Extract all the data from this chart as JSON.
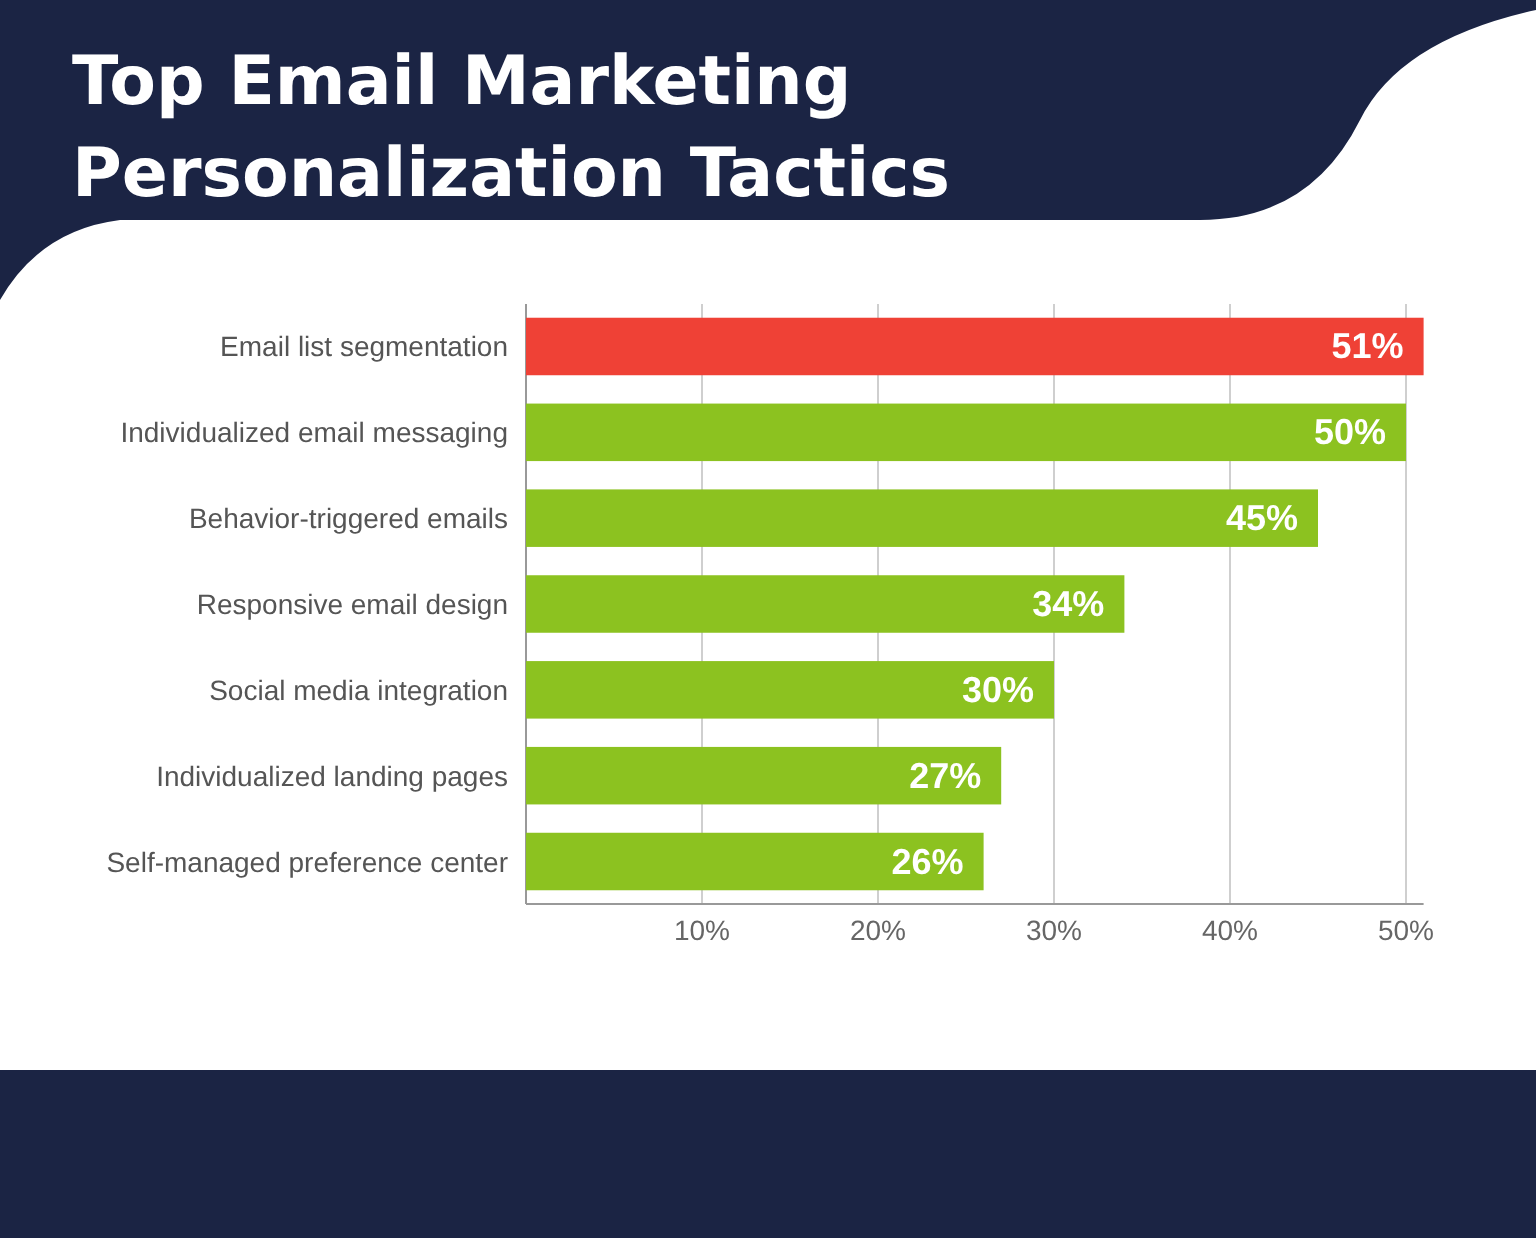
{
  "chart_data": {
    "type": "bar",
    "orientation": "horizontal",
    "title": "Top Email Marketing Personalization Tactics",
    "categories": [
      "Email list segmentation",
      "Individualized email messaging",
      "Behavior-triggered emails",
      "Responsive email design",
      "Social media integration",
      "Individualized landing pages",
      "Self-managed preference center"
    ],
    "values": [
      51,
      50,
      45,
      34,
      30,
      27,
      26
    ],
    "colors": [
      "#ef4136",
      "#8cc220",
      "#8cc220",
      "#8cc220",
      "#8cc220",
      "#8cc220",
      "#8cc220"
    ],
    "value_labels": [
      "51%",
      "50%",
      "45%",
      "34%",
      "30%",
      "27%",
      "26%"
    ],
    "xlim": [
      0,
      51
    ],
    "xticks": [
      {
        "value": 10,
        "label": "10%"
      },
      {
        "value": 20,
        "label": "20%"
      },
      {
        "value": 30,
        "label": "30%"
      },
      {
        "value": 40,
        "label": "40%"
      },
      {
        "value": 50,
        "label": "50%"
      }
    ],
    "grid": "x"
  }
}
